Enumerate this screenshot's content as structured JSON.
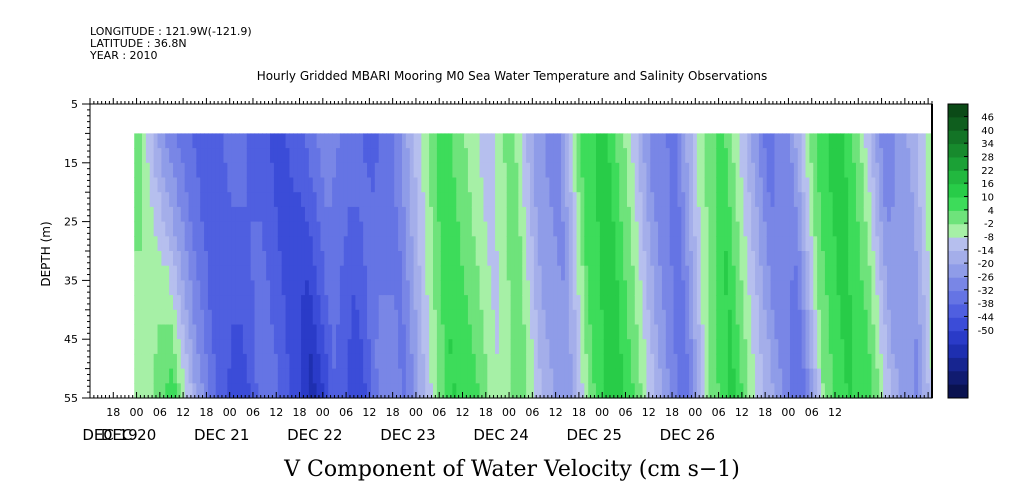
{
  "header": {
    "longitude": "LONGITUDE : 121.9W(-121.9)",
    "latitude": "LATITUDE : 36.8N",
    "year": "YEAR : 2010"
  },
  "chart_data": {
    "type": "heatmap",
    "title": "Hourly Gridded MBARI Mooring M0 Sea Water Temperature and Salinity Observations",
    "xlabel": "V Component of Water Velocity (cm s−1)",
    "ylabel": "DEPTH (m)",
    "x_hour_ticks": [
      "18",
      "00",
      "06",
      "12",
      "18",
      "00",
      "06",
      "12",
      "18",
      "00",
      "06",
      "12",
      "18",
      "00",
      "06",
      "12",
      "18",
      "00",
      "06",
      "12",
      "18",
      "00",
      "06",
      "12",
      "18",
      "00",
      "06",
      "12",
      "18",
      "00",
      "06",
      "12"
    ],
    "x_day_labels": [
      "DEC 19",
      "DEC 20",
      "DEC 21",
      "DEC 22",
      "DEC 23",
      "DEC 24",
      "DEC 25",
      "DEC 26"
    ],
    "x_range_hours_since_dec19_00": [
      12,
      229
    ],
    "y_ticks": [
      "5",
      "15",
      "25",
      "35",
      "45",
      "55"
    ],
    "ylim": [
      55,
      5
    ],
    "data_depth_range": [
      10,
      55
    ],
    "colorbar_labels": [
      "46",
      "40",
      "34",
      "28",
      "22",
      "16",
      "10",
      "4",
      "-2",
      "-8",
      "-14",
      "-20",
      "-26",
      "-32",
      "-38",
      "-44",
      "-50"
    ],
    "colorbar_colors": [
      "#0b4a17",
      "#0f5e1e",
      "#137426",
      "#178a2d",
      "#1ba136",
      "#22b83f",
      "#28cc48",
      "#3ddc5a",
      "#6ee37b",
      "#a6f0a6",
      "#b6bfee",
      "#a4aeea",
      "#8f9ce8",
      "#7986e6",
      "#6574e4",
      "#4f5fe0",
      "#3b4cd8",
      "#2a3bc8",
      "#1e2fb0",
      "#172590",
      "#101b70",
      "#0a1250"
    ],
    "profile_hours": [
      24,
      30,
      36,
      42,
      48,
      54,
      60,
      66,
      72,
      78,
      84,
      90,
      96,
      102,
      108,
      114,
      120,
      126,
      132,
      138,
      144,
      150,
      156,
      162,
      168,
      174,
      180,
      186,
      192,
      198,
      204,
      210,
      216,
      222,
      228
    ],
    "v_surface": [
      12,
      -8,
      -16,
      -22,
      -14,
      -20,
      -24,
      -18,
      -10,
      -14,
      -20,
      -12,
      4,
      18,
      10,
      2,
      14,
      -6,
      -12,
      16,
      22,
      8,
      -10,
      -14,
      6,
      18,
      2,
      -16,
      -8,
      14,
      24,
      10,
      -12,
      -4,
      8
    ],
    "v_bottom": [
      8,
      18,
      -4,
      -20,
      -26,
      -12,
      -22,
      -34,
      -18,
      -28,
      -8,
      -14,
      4,
      20,
      16,
      6,
      14,
      -2,
      -6,
      14,
      24,
      12,
      -4,
      -18,
      10,
      22,
      6,
      -6,
      -18,
      12,
      20,
      16,
      -2,
      -10,
      16
    ]
  }
}
